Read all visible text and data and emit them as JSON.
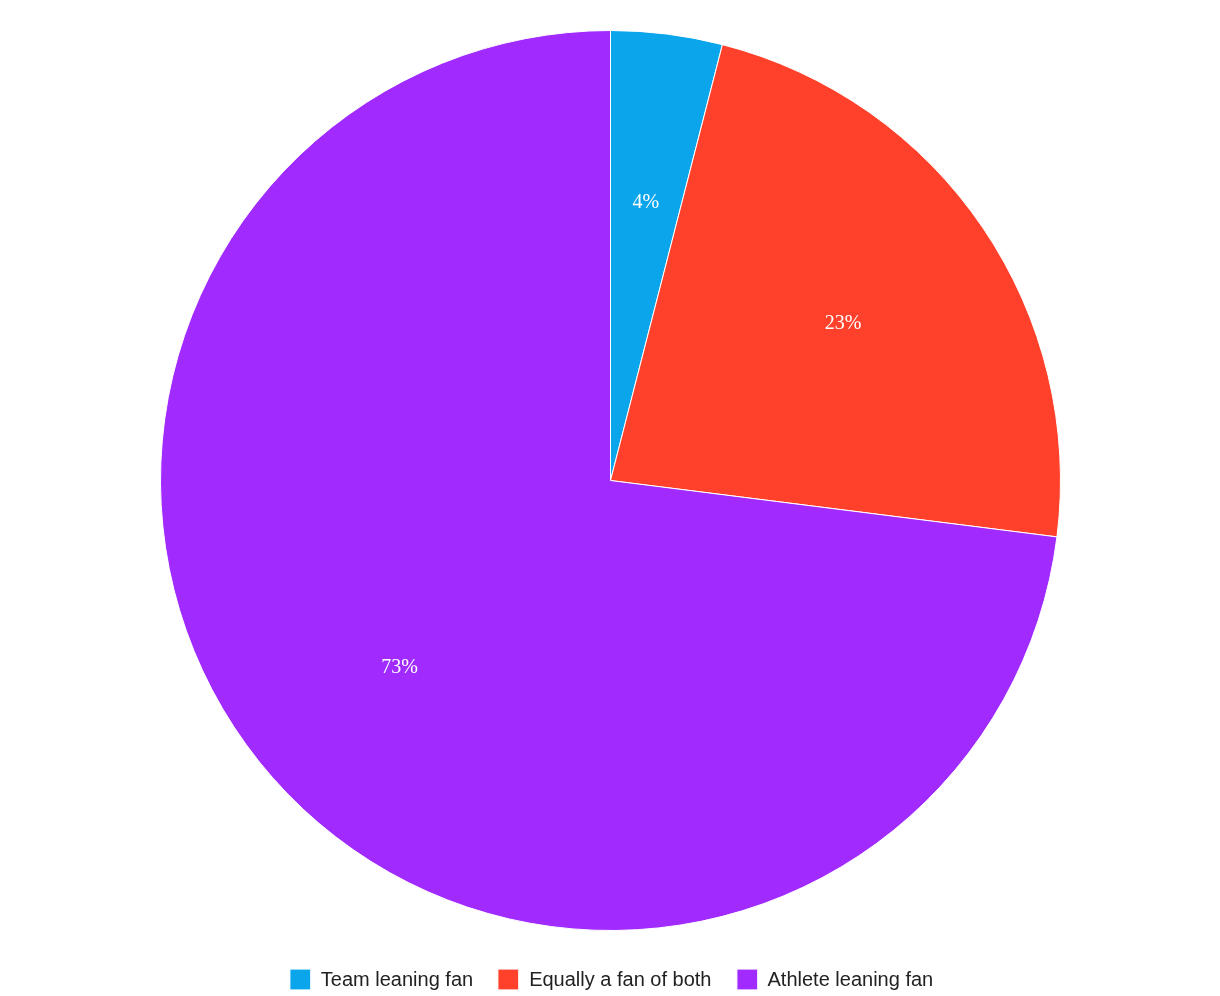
{
  "chart_data": {
    "type": "pie",
    "categories": [
      "Team leaning fan",
      "Equally a fan of both",
      "Athlete leaning fan"
    ],
    "values": [
      4,
      23,
      73
    ],
    "colors": [
      "#0ba5ec",
      "#ff412c",
      "#a12bff"
    ],
    "value_labels": [
      "4%",
      "23%",
      "73%"
    ],
    "legend": "bottom"
  }
}
